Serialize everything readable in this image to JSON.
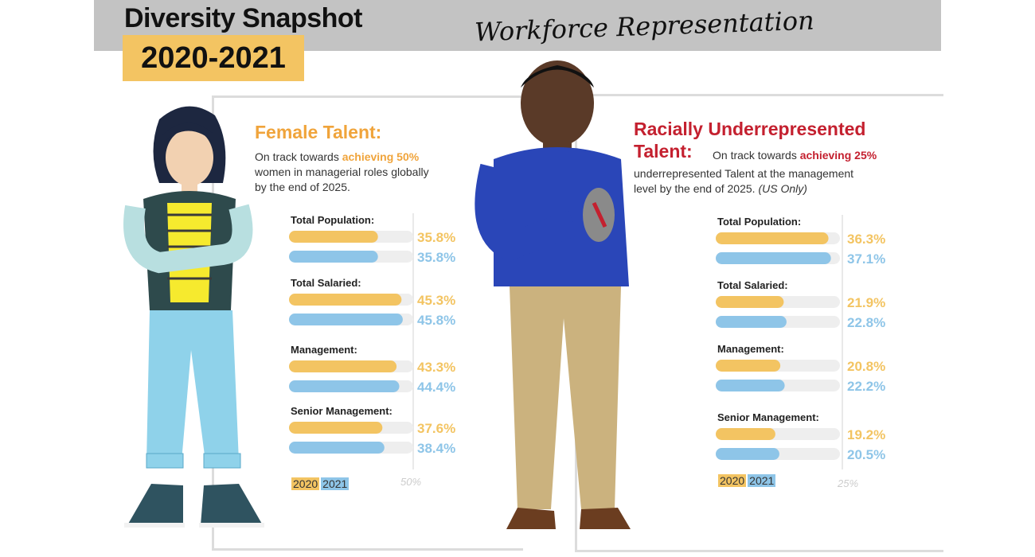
{
  "header": {
    "title": "Diversity Snapshot",
    "years": "2020-2021",
    "subtitle": "Workforce Representation"
  },
  "sections": {
    "female": {
      "heading": "Female Talent:",
      "desc_prefix": "On track towards ",
      "desc_highlight": "achieving 50%",
      "desc_line2": "women in managerial roles globally",
      "desc_line3": "by the end of 2025.",
      "reference": "50%"
    },
    "racial": {
      "heading_line1": "Racially Underrepresented",
      "heading_line2": "Talent:",
      "desc_prefix": " On track towards ",
      "desc_highlight": "achieving 25%",
      "desc_line2": "underrepresented Talent at the management",
      "desc_line3": "level by the end of 2025. ",
      "desc_note": "(US Only)",
      "reference": "25%"
    }
  },
  "legend": {
    "y2020": "2020",
    "y2021": "2021"
  },
  "colors": {
    "y2020": "#f3c462",
    "y2021": "#8ec5e8",
    "track": "#eeeeee",
    "accent_red": "#c4202f",
    "accent_orange": "#f0a43b"
  },
  "chart_data": [
    {
      "type": "bar",
      "categories": [
        "Total Population:",
        "Total Salaried:",
        "Management:",
        "Senior Management:"
      ],
      "series": [
        {
          "name": "2020",
          "values": [
            35.8,
            45.3,
            43.3,
            37.6
          ],
          "labels": [
            "35.8%",
            "45.3%",
            "43.3%",
            "37.6%"
          ]
        },
        {
          "name": "2021",
          "values": [
            35.8,
            45.8,
            44.4,
            38.4
          ],
          "labels": [
            "35.8%",
            "45.8%",
            "44.4%",
            "38.4%"
          ]
        }
      ],
      "target": 50,
      "xlim": [
        0,
        50
      ]
    },
    {
      "type": "bar",
      "categories": [
        "Total Population:",
        "Total Salaried:",
        "Management:",
        "Senior Management:"
      ],
      "series": [
        {
          "name": "2020",
          "values": [
            36.3,
            21.9,
            20.8,
            19.2
          ],
          "labels": [
            "36.3%",
            "21.9%",
            "20.8%",
            "19.2%"
          ]
        },
        {
          "name": "2021",
          "values": [
            37.1,
            22.8,
            22.2,
            20.5
          ],
          "labels": [
            "37.1%",
            "22.8%",
            "22.2%",
            "20.5%"
          ]
        }
      ],
      "target": 25,
      "xlim": [
        0,
        40
      ]
    }
  ]
}
